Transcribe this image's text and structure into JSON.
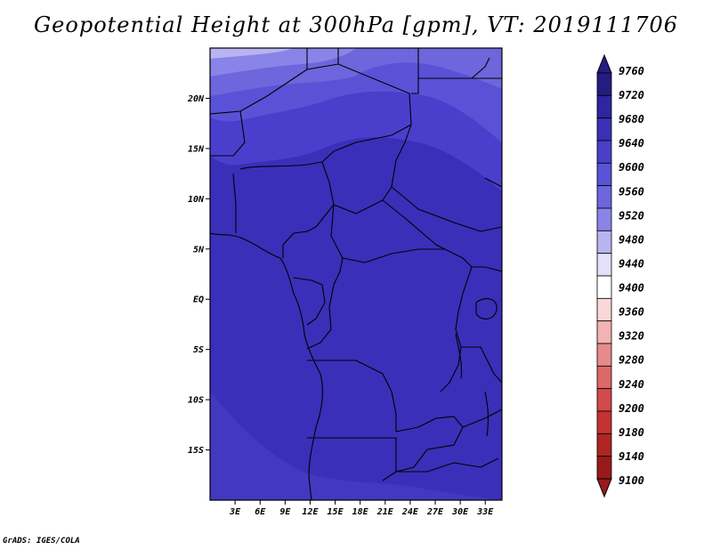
{
  "title": "Geopotential Height at 300hPa [gpm], VT: 2019111706",
  "credit": "GrADS: IGES/COLA",
  "map": {
    "variable": "Geopotential Height",
    "level": "300hPa",
    "units": "gpm",
    "valid_time": "2019111706",
    "lon_range": [
      0,
      35
    ],
    "lat_range": [
      -20,
      25
    ],
    "lat_ticks": [
      {
        "value": 20,
        "label": "20N"
      },
      {
        "value": 15,
        "label": "15N"
      },
      {
        "value": 10,
        "label": "10N"
      },
      {
        "value": 5,
        "label": "5N"
      },
      {
        "value": 0,
        "label": "EQ"
      },
      {
        "value": -5,
        "label": "5S"
      },
      {
        "value": -10,
        "label": "10S"
      },
      {
        "value": -15,
        "label": "15S"
      }
    ],
    "lon_ticks": [
      {
        "value": 3,
        "label": "3E"
      },
      {
        "value": 6,
        "label": "6E"
      },
      {
        "value": 9,
        "label": "9E"
      },
      {
        "value": 12,
        "label": "12E"
      },
      {
        "value": 15,
        "label": "15E"
      },
      {
        "value": 18,
        "label": "18E"
      },
      {
        "value": 21,
        "label": "21E"
      },
      {
        "value": 24,
        "label": "24E"
      },
      {
        "value": 27,
        "label": "27E"
      },
      {
        "value": 30,
        "label": "30E"
      },
      {
        "value": 33,
        "label": "33E"
      }
    ]
  },
  "colorbar": {
    "levels": [
      9760,
      9720,
      9680,
      9640,
      9600,
      9560,
      9520,
      9480,
      9440,
      9400,
      9360,
      9320,
      9280,
      9240,
      9200,
      9180,
      9140,
      9100
    ],
    "colors": [
      "#241c80",
      "#2e25a0",
      "#3a30b5",
      "#4a40c8",
      "#5a52d6",
      "#6d66dc",
      "#8a84e8",
      "#b8b4f2",
      "#e2e0fa",
      "#ffffff",
      "#fad8d8",
      "#f4b2b2",
      "#e88a8a",
      "#dc6868",
      "#d24a4a",
      "#c43232",
      "#b02424",
      "#981a1a"
    ]
  },
  "colors": {
    "main_field": "#3a2fb8",
    "south_band": "#4338c0",
    "north_band_1": "#4a3fcc",
    "north_band_2": "#5a52d6",
    "north_band_3": "#6d66dc",
    "north_band_4": "#8a84e8",
    "north_band_5": "#b8b4f2"
  }
}
